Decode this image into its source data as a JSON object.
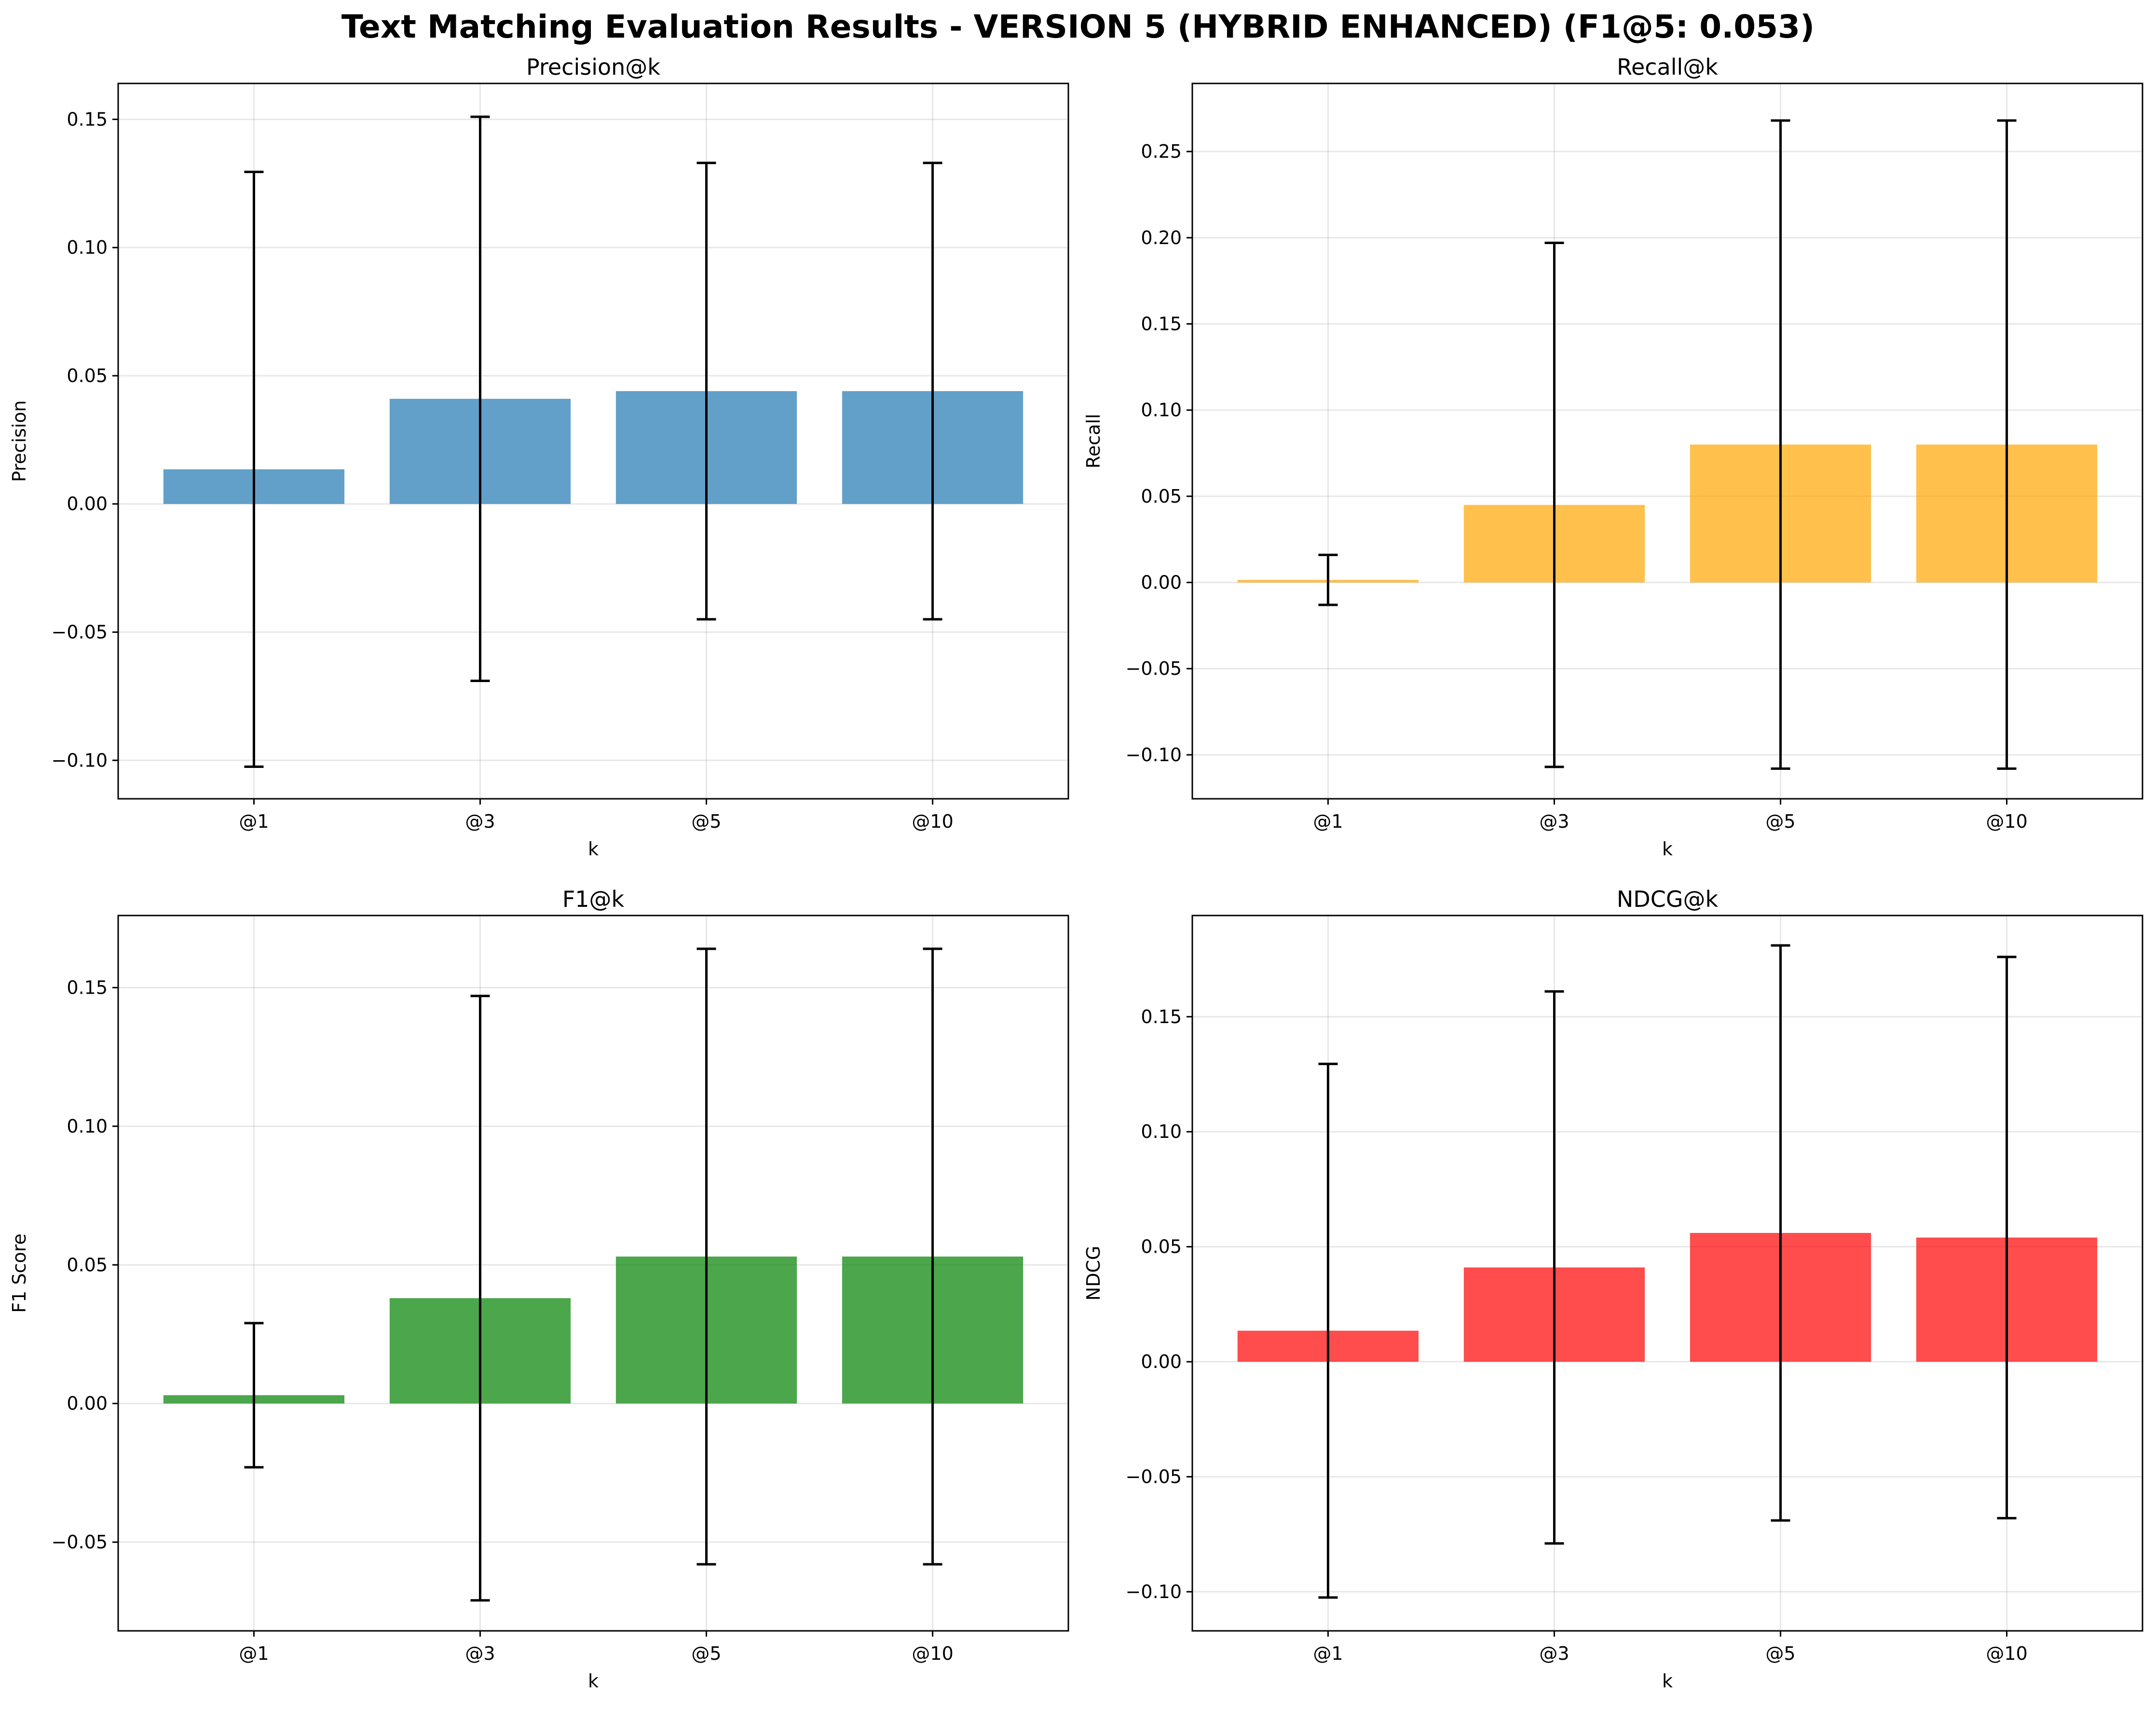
{
  "figure": {
    "title": "Text Matching Evaluation Results - VERSION 5 (HYBRID ENHANCED) (F1@5: 0.053)"
  },
  "chart_data": [
    {
      "type": "bar",
      "title": "Precision@k",
      "xlabel": "k",
      "ylabel": "Precision",
      "categories": [
        "@1",
        "@3",
        "@5",
        "@10"
      ],
      "values": [
        0.0135,
        0.041,
        0.044,
        0.044
      ],
      "error": [
        0.116,
        0.11,
        0.089,
        0.089
      ],
      "ylim": [
        -0.115,
        0.164
      ],
      "yticks": [
        -0.1,
        -0.05,
        0.0,
        0.05,
        0.1,
        0.15
      ],
      "yticklabels": [
        "−0.10",
        "−0.05",
        "0.00",
        "0.05",
        "0.10",
        "0.15"
      ],
      "color": "#1f77b4",
      "grid": true
    },
    {
      "type": "bar",
      "title": "Recall@k",
      "xlabel": "k",
      "ylabel": "Recall",
      "categories": [
        "@1",
        "@3",
        "@5",
        "@10"
      ],
      "values": [
        0.0015,
        0.045,
        0.08,
        0.08
      ],
      "error": [
        0.0145,
        0.152,
        0.188,
        0.188
      ],
      "ylim": [
        -0.1255,
        0.2895
      ],
      "yticks": [
        -0.1,
        -0.05,
        0.0,
        0.05,
        0.1,
        0.15,
        0.2,
        0.25
      ],
      "yticklabels": [
        "−0.10",
        "−0.05",
        "0.00",
        "0.05",
        "0.10",
        "0.15",
        "0.20",
        "0.25"
      ],
      "color": "#ffa500",
      "grid": true
    },
    {
      "type": "bar",
      "title": "F1@k",
      "xlabel": "k",
      "ylabel": "F1 Score",
      "categories": [
        "@1",
        "@3",
        "@5",
        "@10"
      ],
      "values": [
        0.003,
        0.038,
        0.053,
        0.053
      ],
      "error": [
        0.026,
        0.109,
        0.111,
        0.111
      ],
      "ylim": [
        -0.082,
        0.176
      ],
      "yticks": [
        -0.05,
        0.0,
        0.05,
        0.1,
        0.15
      ],
      "yticklabels": [
        "−0.05",
        "0.00",
        "0.05",
        "0.10",
        "0.15"
      ],
      "color": "#008000",
      "grid": true
    },
    {
      "type": "bar",
      "title": "NDCG@k",
      "xlabel": "k",
      "ylabel": "NDCG",
      "categories": [
        "@1",
        "@3",
        "@5",
        "@10"
      ],
      "values": [
        0.0135,
        0.041,
        0.056,
        0.054
      ],
      "error": [
        0.116,
        0.12,
        0.125,
        0.122
      ],
      "ylim": [
        -0.117,
        0.194
      ],
      "yticks": [
        -0.1,
        -0.05,
        0.0,
        0.05,
        0.1,
        0.15
      ],
      "yticklabels": [
        "−0.10",
        "−0.05",
        "0.00",
        "0.05",
        "0.10",
        "0.15"
      ],
      "color": "#ff0000",
      "grid": true
    }
  ]
}
